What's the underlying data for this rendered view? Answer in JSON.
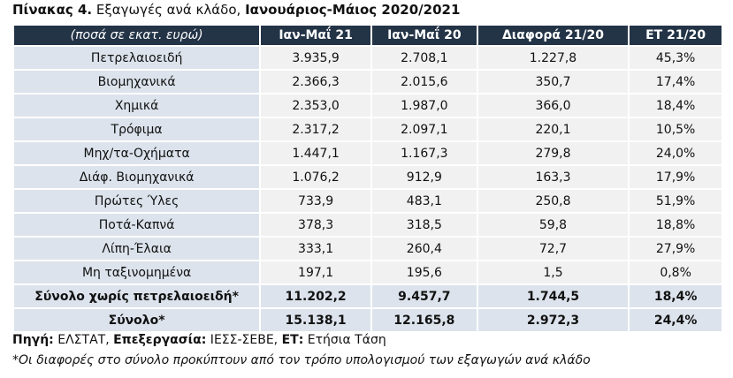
{
  "title": {
    "label": "Πίνακας 4.",
    "text": " Εξαγωγές ανά κλάδο, ",
    "period": "Ιανουάριος-Μάιος 2020/2021"
  },
  "table": {
    "header": [
      "(ποσά σε εκατ. ευρώ)",
      "Ιαν-Μαΐ 21",
      "Ιαν-Μαΐ 20",
      "Διαφορά 21/20",
      "ΕΤ 21/20"
    ],
    "rows": [
      [
        "Πετρελαιοειδή",
        "3.935,9",
        "2.708,1",
        "1.227,8",
        "45,3%"
      ],
      [
        "Βιομηχανικά",
        "2.366,3",
        "2.015,6",
        "350,7",
        "17,4%"
      ],
      [
        "Χημικά",
        "2.353,0",
        "1.987,0",
        "366,0",
        "18,4%"
      ],
      [
        "Τρόφιμα",
        "2.317,2",
        "2.097,1",
        "220,1",
        "10,5%"
      ],
      [
        "Μηχ/τα-Οχήματα",
        "1.447,1",
        "1.167,3",
        "279,8",
        "24,0%"
      ],
      [
        "Διάφ. Βιομηχανικά",
        "1.076,2",
        "912,9",
        "163,3",
        "17,9%"
      ],
      [
        "Πρώτες Ύλες",
        "733,9",
        "483,1",
        "250,8",
        "51,9%"
      ],
      [
        "Ποτά-Καπνά",
        "378,3",
        "318,5",
        "59,8",
        "18,8%"
      ],
      [
        "Λίπη-Έλαια",
        "333,1",
        "260,4",
        "72,7",
        "27,9%"
      ],
      [
        "Μη ταξινομημένα",
        "197,1",
        "195,6",
        "1,5",
        "0,8%"
      ]
    ],
    "totals": [
      [
        "Σύνολο χωρίς πετρελαιοειδή*",
        "11.202,2",
        "9.457,7",
        "1.744,5",
        "18,4%"
      ],
      [
        "Σύνολο*",
        "15.138,1",
        "12.165,8",
        "2.972,3",
        "24,4%"
      ]
    ]
  },
  "source": {
    "source_label": "Πηγή:",
    "source": " ΕΛΣΤΑΤ, ",
    "processing_label": "Επεξεργασία:",
    "processing": " ΙΕΣΣ-ΣΕΒΕ, ",
    "et_label": "ΕΤ:",
    "et": " Ετήσια Τάση"
  },
  "note": "*Οι διαφορές στο σύνολο προκύπτουν από τον τρόπο υπολογισμού των εξαγωγών ανά κλάδο"
}
